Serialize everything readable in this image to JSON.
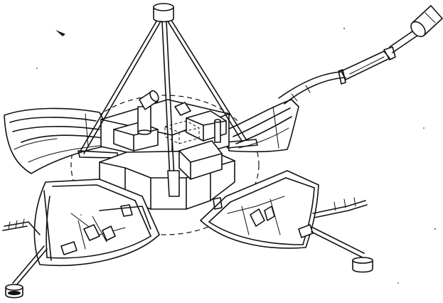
{
  "figure": {
    "ink": "#111111",
    "paper": "#ffffff"
  }
}
